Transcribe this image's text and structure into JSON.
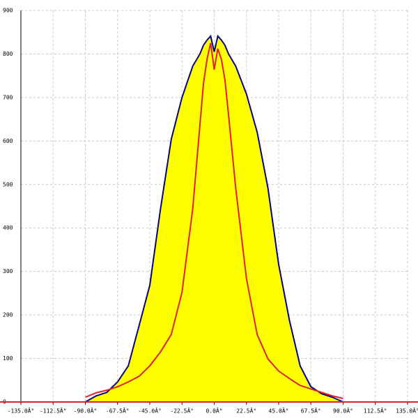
{
  "chart_data": {
    "type": "area",
    "x": [
      -90,
      -82.5,
      -75,
      -67.5,
      -60,
      -52.5,
      -45,
      -37.5,
      -30,
      -22.5,
      -15,
      -10,
      -7.5,
      -5,
      -2.5,
      0,
      2.5,
      5,
      7.5,
      10,
      15,
      22.5,
      30,
      37.5,
      45,
      52.5,
      60,
      67.5,
      75,
      82.5,
      90
    ],
    "series": [
      {
        "color": "#00008b",
        "fill": "#ffff00",
        "values": [
          0,
          14,
          22,
          46,
          83,
          175,
          268,
          444,
          604,
          700,
          772,
          800,
          820,
          832,
          841,
          805,
          841,
          832,
          820,
          800,
          772,
          708,
          620,
          492,
          316,
          188,
          83,
          35,
          19,
          11,
          0
        ]
      },
      {
        "color": "#e0202a",
        "values": [
          11,
          21,
          27,
          35,
          46,
          59,
          83,
          115,
          155,
          252,
          444,
          636,
          732,
          788,
          825,
          764,
          812,
          788,
          740,
          660,
          492,
          284,
          155,
          99,
          71,
          54,
          38,
          30,
          22,
          14,
          8
        ]
      }
    ],
    "xlim": [
      -135,
      135
    ],
    "xticks": [
      {
        "value": -135,
        "label": "-135.0Â°"
      },
      {
        "value": -112.5,
        "label": "-112.5Â°"
      },
      {
        "value": -90,
        "label": "-90.0Â°"
      },
      {
        "value": -67.5,
        "label": "-67.5Â°"
      },
      {
        "value": -45,
        "label": "-45.0Â°"
      },
      {
        "value": -22.5,
        "label": "-22.5Â°"
      },
      {
        "value": 0,
        "label": "0.0Â°"
      },
      {
        "value": 22.5,
        "label": "22.5Â°"
      },
      {
        "value": 45,
        "label": "45.0Â°"
      },
      {
        "value": 67.5,
        "label": "67.5Â°"
      },
      {
        "value": 90,
        "label": "90.0Â°"
      },
      {
        "value": 112.5,
        "label": "112.5Â°"
      },
      {
        "value": 135,
        "label": "135.0Â°"
      }
    ],
    "ylim": [
      0,
      900
    ],
    "yticks": [
      0,
      100,
      200,
      300,
      400,
      500,
      600,
      700,
      800,
      900
    ],
    "grid": true
  }
}
